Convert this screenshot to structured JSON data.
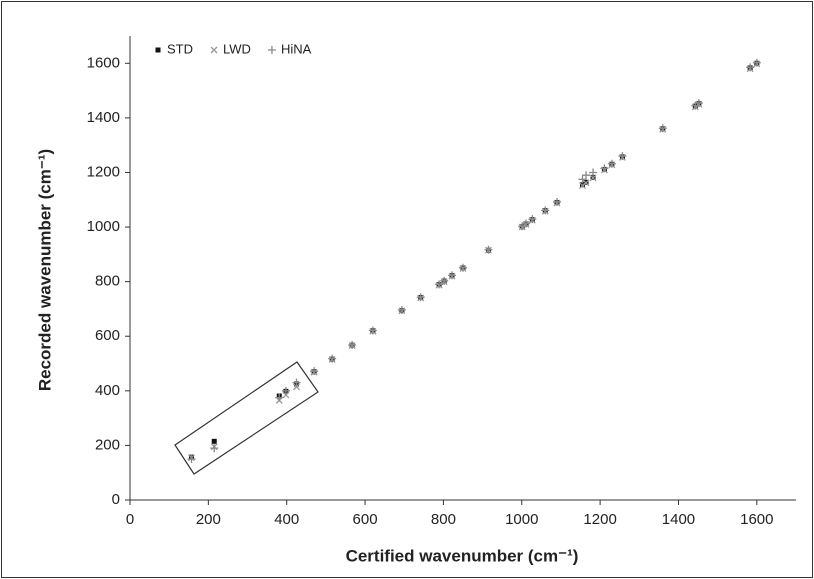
{
  "chart_data": {
    "type": "scatter",
    "x_label": "Certified wavenumber (cm⁻¹)",
    "y_label": "Recorded wavenumber (cm⁻¹)",
    "x": [
      157,
      215,
      381,
      398,
      425,
      470,
      516,
      567,
      620,
      694,
      742,
      789,
      802,
      822,
      850,
      915,
      1001,
      1011,
      1027,
      1060,
      1090,
      1155,
      1164,
      1182,
      1211,
      1230,
      1257,
      1360,
      1443,
      1452,
      1583,
      1600
    ],
    "series": [
      {
        "name": "STD",
        "color": "#111111",
        "marker": "square",
        "values": [
          157,
          215,
          381,
          398,
          425,
          470,
          516,
          567,
          620,
          694,
          742,
          789,
          802,
          822,
          850,
          915,
          1001,
          1011,
          1027,
          1060,
          1090,
          1155,
          1164,
          1182,
          1211,
          1230,
          1257,
          1360,
          1443,
          1452,
          1583,
          1600
        ]
      },
      {
        "name": "LWD",
        "color": "#999999",
        "marker": "x",
        "values": [
          155,
          195,
          365,
          385,
          415,
          468,
          515,
          566,
          618,
          693,
          740,
          787,
          800,
          820,
          848,
          915,
          1000,
          1010,
          1025,
          1058,
          1088,
          1152,
          1162,
          1180,
          1209,
          1228,
          1255,
          1358,
          1440,
          1450,
          1580,
          1598
        ]
      },
      {
        "name": "HiNA",
        "color": "#888888",
        "marker": "plus",
        "values": [
          150,
          190,
          375,
          400,
          430,
          472,
          518,
          568,
          621,
          696,
          743,
          790,
          803,
          823,
          851,
          917,
          1003,
          1013,
          1029,
          1061,
          1092,
          1175,
          1190,
          1200,
          1215,
          1232,
          1260,
          1362,
          1445,
          1454,
          1585,
          1602
        ]
      }
    ],
    "xlim": [
      0,
      1700
    ],
    "xticks": [
      0,
      200,
      400,
      600,
      800,
      1000,
      1200,
      1400,
      1600
    ],
    "ylim": [
      0,
      1700
    ],
    "yticks": [
      0,
      200,
      400,
      600,
      800,
      1000,
      1200,
      1400,
      1600
    ],
    "legend": "upper left"
  }
}
